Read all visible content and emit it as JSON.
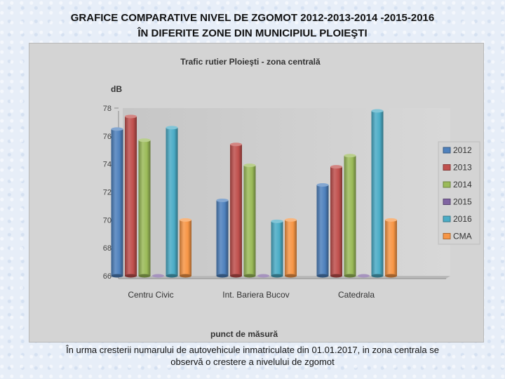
{
  "slide": {
    "title_line1": "GRAFICE COMPARATIVE NIVEL DE ZGOMOT  2012-2013-2014 -2015-2016",
    "title_line2": "ÎN DIFERITE ZONE  DIN MUNICIPIUL  PLOIEŞTI",
    "caption": "În urma cresterii  numarului de autovehicule  inmatriculate din 01.01.2017, in zona centrala se observă o crestere a nivelului de zgomot"
  },
  "chart_data": {
    "type": "bar",
    "title": "Trafic rutier Ploieşti - zona centrală",
    "ylabel": "dB",
    "xlabel": "punct de măsură",
    "categories": [
      "Centru  Civic",
      "Int. Bariera Bucov",
      "Catedrala"
    ],
    "ylim": [
      66,
      78
    ],
    "yticks": [
      66,
      68,
      70,
      72,
      74,
      76,
      78
    ],
    "series": [
      {
        "name": "2012",
        "color": "#4f81bd",
        "values": [
          76.5,
          71.4,
          72.5
        ]
      },
      {
        "name": "2013",
        "color": "#c0504d",
        "values": [
          77.4,
          75.4,
          73.8
        ]
      },
      {
        "name": "2014",
        "color": "#9bbb59",
        "values": [
          75.7,
          73.9,
          74.6
        ]
      },
      {
        "name": "2015",
        "color": "#8064a2",
        "values": [
          66,
          66,
          66
        ]
      },
      {
        "name": "2016",
        "color": "#4bacc6",
        "values": [
          76.6,
          69.9,
          77.8
        ]
      },
      {
        "name": "CMA",
        "color": "#f79646",
        "values": [
          70,
          70,
          70
        ]
      }
    ],
    "legend_position": "right",
    "grid": false,
    "style": "3d-cylinder"
  }
}
